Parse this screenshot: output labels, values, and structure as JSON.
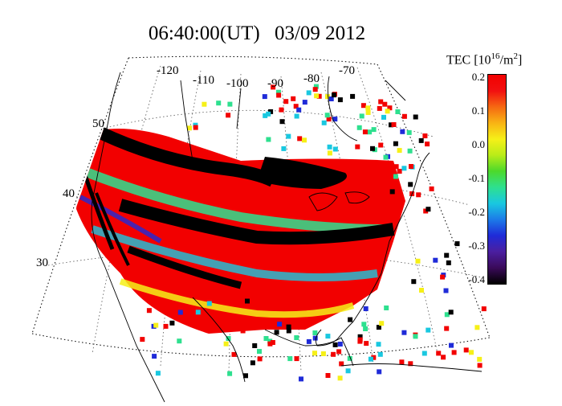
{
  "title": {
    "time": "06:40:00(UT)",
    "date": "03/09 2012"
  },
  "colorbar": {
    "label": "TEC [10",
    "exponent": "16",
    "unit": "/m",
    "unit_exp": "2",
    "close": "]",
    "ticks": [
      "0.2",
      "0.1",
      "0.0",
      "-0.1",
      "-0.2",
      "-0.3",
      "-0.4"
    ],
    "range": [
      -0.4,
      0.2
    ],
    "colors": [
      "#000000",
      "#3a0a5a",
      "#4b1fa0",
      "#1f2bd8",
      "#1c7be8",
      "#19c8e0",
      "#2ee08f",
      "#4cd92b",
      "#b9ec18",
      "#f6f018",
      "#f8b414",
      "#f66812",
      "#f21010",
      "#f20000"
    ]
  },
  "longitude_labels": [
    "-120",
    "-110",
    "-100",
    "-90",
    "-80",
    "-70"
  ],
  "latitude_labels": [
    "50",
    "40",
    "30"
  ],
  "map": {
    "region": "North America (USA)",
    "projection": "conic",
    "grid": "dotted",
    "band_colors": {
      "positive": "#f20000",
      "negative": "#000000",
      "mid": "#2ee08f",
      "cyan": "#19c8e0",
      "blue": "#1f2bd8",
      "yellow": "#f6f018"
    }
  }
}
